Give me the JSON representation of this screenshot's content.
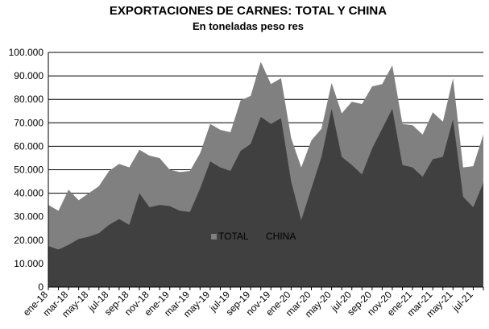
{
  "chart_data": {
    "type": "area",
    "title": "EXPORTACIONES DE CARNES: TOTAL Y CHINA",
    "subtitle": "En toneladas  peso res",
    "xlabel": "",
    "ylabel": "",
    "ylim": [
      0,
      100000
    ],
    "yticks": [
      "0",
      "10.000",
      "20.000",
      "30.000",
      "40.000",
      "50.000",
      "60.000",
      "70.000",
      "80.000",
      "90.000",
      "100.000"
    ],
    "grid": true,
    "legend": "center",
    "x": [
      "ene-18",
      "feb-18",
      "mar-18",
      "abr-18",
      "may-18",
      "jun-18",
      "jul-18",
      "ago-18",
      "sep-18",
      "oct-18",
      "nov-18",
      "dic-18",
      "ene-19",
      "feb-19",
      "mar-19",
      "abr-19",
      "may-19",
      "jun-19",
      "jul-19",
      "ago-19",
      "sep-19",
      "oct-19",
      "nov-19",
      "dic-19",
      "ene-20",
      "feb-20",
      "mar-20",
      "abr-20",
      "may-20",
      "jun-20",
      "jul-20",
      "ago-20",
      "sep-20",
      "oct-20",
      "nov-20",
      "dic-20",
      "ene-21",
      "feb-21",
      "mar-21",
      "abr-21",
      "may-21",
      "jun-21",
      "jul-21",
      "ago-21"
    ],
    "xtick_labels": [
      "ene-18",
      "mar-18",
      "may-18",
      "jul-18",
      "sep-18",
      "nov-18",
      "ene-19",
      "mar-19",
      "may-19",
      "jul-19",
      "sep-19",
      "nov-19",
      "ene-20",
      "mar-20",
      "may-20",
      "jul-20",
      "sep-20",
      "nov-20",
      "ene-21",
      "mar-21",
      "may-21",
      "jul-21"
    ],
    "series": [
      {
        "name": "TOTAL",
        "color": "#808080",
        "values": [
          35000,
          32500,
          41500,
          37000,
          40000,
          43000,
          49500,
          52500,
          51000,
          58500,
          56000,
          55000,
          50000,
          49000,
          49500,
          57000,
          69500,
          67000,
          66000,
          79500,
          81500,
          96000,
          86500,
          89000,
          63500,
          51000,
          62500,
          67500,
          87000,
          74000,
          79000,
          78000,
          85500,
          86500,
          94500,
          69500,
          69000,
          65000,
          74500,
          70500,
          89000,
          51000,
          51500,
          65000
        ]
      },
      {
        "name": "CHINA",
        "color": "#404040",
        "values": [
          17500,
          16000,
          18000,
          20500,
          21500,
          23000,
          26500,
          29000,
          26500,
          40000,
          34000,
          35000,
          34500,
          32500,
          32000,
          42000,
          53500,
          51000,
          49500,
          58000,
          61000,
          72500,
          69500,
          72000,
          45000,
          28500,
          42000,
          55500,
          76000,
          55500,
          52000,
          48000,
          59000,
          67500,
          76000,
          52000,
          51000,
          47000,
          54500,
          55500,
          71500,
          38500,
          34000,
          44500
        ]
      }
    ]
  }
}
